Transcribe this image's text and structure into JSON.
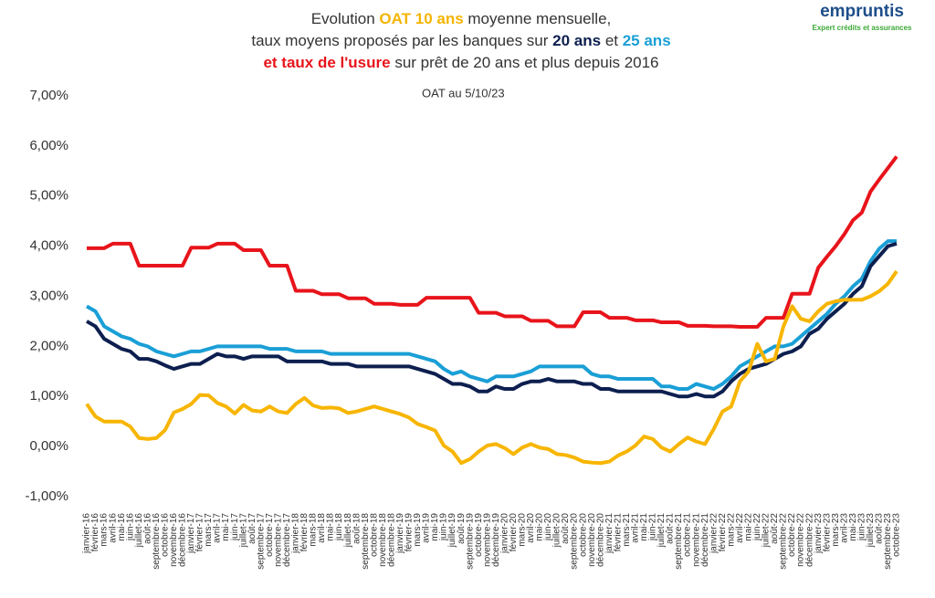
{
  "chart_data": {
    "type": "line",
    "title_lines": [
      [
        {
          "text": "Evolution "
        },
        {
          "text": "OAT 10 ans",
          "color": "#f5b400",
          "bold": true
        },
        {
          "text": " moyenne mensuelle,"
        }
      ],
      [
        {
          "text": "taux moyens proposés par les banques sur "
        },
        {
          "text": "20 ans",
          "color": "#0d1f4f",
          "bold": true
        },
        {
          "text": " et "
        },
        {
          "text": "25 ans",
          "color": "#1a9fd6",
          "bold": true
        }
      ],
      [
        {
          "text": "et taux de l'usure",
          "color": "#e8141b",
          "bold": true
        },
        {
          "text": " sur prêt de 20 ans et plus depuis 2016"
        }
      ]
    ],
    "annotation": "OAT au 5/10/23",
    "logo": {
      "name": "empruntis",
      "tagline": "Expert crédits et assurances"
    },
    "categories": [
      "janvier-16",
      "février-16",
      "mars-16",
      "avril-16",
      "mai-16",
      "juin-16",
      "juillet-16",
      "août-16",
      "septembre-16",
      "octobre-16",
      "novembre-16",
      "décembre-16",
      "janvier-17",
      "février-17",
      "mars-17",
      "avril-17",
      "mai-17",
      "juin-17",
      "juillet-17",
      "août-17",
      "septembre-17",
      "octobre-17",
      "novembre-17",
      "décembre-17",
      "janvier-18",
      "février-18",
      "mars-18",
      "avril-18",
      "mai-18",
      "juin-18",
      "juillet-18",
      "août-18",
      "septembre-18",
      "octobre-18",
      "novembre-18",
      "décembre-18",
      "janvier-19",
      "février-19",
      "mars-19",
      "avril-19",
      "mai-19",
      "juin-19",
      "juillet-19",
      "août-19",
      "septembre-19",
      "octobre-19",
      "novembre-19",
      "décembre-19",
      "janvier-20",
      "février-20",
      "mars-20",
      "avril-20",
      "mai-20",
      "juin-20",
      "juillet-20",
      "août-20",
      "septembre-20",
      "octobre-20",
      "novembre-20",
      "décembre-20",
      "janvier-21",
      "février-21",
      "mars-21",
      "avril-21",
      "mai-21",
      "juin-21",
      "juillet-21",
      "août-21",
      "septembre-21",
      "octobre-21",
      "novembre-21",
      "décembre-21",
      "janvier-22",
      "février-22",
      "mars-22",
      "avril-22",
      "mai-22",
      "juin-22",
      "juillet-22",
      "août-22",
      "septembre-22",
      "octobre-22",
      "novembre-22",
      "décembre-22",
      "janvier-23",
      "février-23",
      "mars-23",
      "avril-23",
      "mai-23",
      "juin-23",
      "juillet-23",
      "août-23",
      "septembre-23",
      "octobre-23"
    ],
    "series": [
      {
        "color": "#e8141b",
        "values": [
          3.96,
          3.96,
          3.96,
          4.05,
          4.05,
          4.05,
          3.61,
          3.61,
          3.61,
          3.61,
          3.61,
          3.61,
          3.97,
          3.97,
          3.97,
          4.05,
          4.05,
          4.05,
          3.92,
          3.92,
          3.92,
          3.61,
          3.61,
          3.61,
          3.11,
          3.11,
          3.11,
          3.04,
          3.04,
          3.04,
          2.96,
          2.96,
          2.96,
          2.85,
          2.85,
          2.85,
          2.83,
          2.83,
          2.83,
          2.97,
          2.97,
          2.97,
          2.97,
          2.97,
          2.97,
          2.67,
          2.67,
          2.67,
          2.6,
          2.6,
          2.6,
          2.51,
          2.51,
          2.51,
          2.4,
          2.4,
          2.4,
          2.68,
          2.68,
          2.68,
          2.57,
          2.57,
          2.57,
          2.52,
          2.52,
          2.52,
          2.48,
          2.48,
          2.48,
          2.41,
          2.41,
          2.41,
          2.4,
          2.4,
          2.4,
          2.39,
          2.39,
          2.39,
          2.57,
          2.57,
          2.57,
          3.05,
          3.05,
          3.05,
          3.57,
          3.79,
          4.0,
          4.24,
          4.52,
          4.67,
          5.09,
          5.33,
          5.56,
          5.79
        ]
      },
      {
        "color": "#1a9fd6",
        "values": [
          2.8,
          2.7,
          2.4,
          2.3,
          2.2,
          2.15,
          2.05,
          2.0,
          1.9,
          1.85,
          1.8,
          1.85,
          1.9,
          1.9,
          1.95,
          2.0,
          2.0,
          2.0,
          2.0,
          2.0,
          2.0,
          1.95,
          1.95,
          1.95,
          1.9,
          1.9,
          1.9,
          1.9,
          1.85,
          1.85,
          1.85,
          1.85,
          1.85,
          1.85,
          1.85,
          1.85,
          1.85,
          1.85,
          1.8,
          1.75,
          1.7,
          1.55,
          1.45,
          1.5,
          1.4,
          1.35,
          1.3,
          1.4,
          1.4,
          1.4,
          1.45,
          1.5,
          1.6,
          1.6,
          1.6,
          1.6,
          1.6,
          1.6,
          1.45,
          1.4,
          1.4,
          1.35,
          1.35,
          1.35,
          1.35,
          1.35,
          1.2,
          1.2,
          1.15,
          1.15,
          1.25,
          1.2,
          1.15,
          1.25,
          1.4,
          1.6,
          1.7,
          1.8,
          1.9,
          2.0,
          2.0,
          2.05,
          2.2,
          2.35,
          2.5,
          2.65,
          2.85,
          3.0,
          3.2,
          3.35,
          3.7,
          3.95,
          4.1,
          4.1
        ]
      },
      {
        "color": "#0d1f4f",
        "values": [
          2.5,
          2.4,
          2.15,
          2.05,
          1.95,
          1.9,
          1.75,
          1.75,
          1.7,
          1.62,
          1.55,
          1.6,
          1.65,
          1.65,
          1.75,
          1.85,
          1.8,
          1.8,
          1.75,
          1.8,
          1.8,
          1.8,
          1.8,
          1.7,
          1.7,
          1.7,
          1.7,
          1.7,
          1.65,
          1.65,
          1.65,
          1.6,
          1.6,
          1.6,
          1.6,
          1.6,
          1.6,
          1.6,
          1.55,
          1.5,
          1.45,
          1.35,
          1.25,
          1.25,
          1.2,
          1.1,
          1.1,
          1.2,
          1.15,
          1.15,
          1.25,
          1.3,
          1.3,
          1.35,
          1.3,
          1.3,
          1.3,
          1.25,
          1.25,
          1.15,
          1.15,
          1.1,
          1.1,
          1.1,
          1.1,
          1.1,
          1.1,
          1.05,
          1.0,
          1.0,
          1.05,
          1.0,
          1.0,
          1.1,
          1.3,
          1.45,
          1.55,
          1.6,
          1.65,
          1.75,
          1.85,
          1.9,
          2.0,
          2.25,
          2.35,
          2.55,
          2.7,
          2.85,
          3.05,
          3.2,
          3.6,
          3.8,
          4.0,
          4.05
        ]
      },
      {
        "color": "#f7b500",
        "values": [
          0.85,
          0.6,
          0.5,
          0.5,
          0.5,
          0.4,
          0.17,
          0.15,
          0.17,
          0.33,
          0.68,
          0.75,
          0.85,
          1.03,
          1.02,
          0.87,
          0.8,
          0.66,
          0.83,
          0.72,
          0.7,
          0.8,
          0.7,
          0.67,
          0.85,
          0.97,
          0.82,
          0.77,
          0.78,
          0.76,
          0.67,
          0.7,
          0.75,
          0.8,
          0.75,
          0.7,
          0.65,
          0.58,
          0.45,
          0.39,
          0.32,
          0.02,
          -0.1,
          -0.33,
          -0.25,
          -0.1,
          0.02,
          0.05,
          -0.03,
          -0.15,
          -0.02,
          0.05,
          -0.02,
          -0.05,
          -0.15,
          -0.17,
          -0.22,
          -0.3,
          -0.32,
          -0.33,
          -0.3,
          -0.18,
          -0.1,
          0.02,
          0.2,
          0.15,
          -0.02,
          -0.1,
          0.05,
          0.18,
          0.1,
          0.05,
          0.35,
          0.7,
          0.8,
          1.3,
          1.5,
          2.05,
          1.7,
          1.75,
          2.4,
          2.8,
          2.55,
          2.5,
          2.7,
          2.85,
          2.9,
          2.93,
          2.93,
          2.93,
          3.0,
          3.1,
          3.25,
          3.5
        ]
      }
    ],
    "ylim": [
      -1,
      7
    ],
    "yticks": [
      {
        "value": -1,
        "label": "-1,00%"
      },
      {
        "value": 0,
        "label": "0,00%"
      },
      {
        "value": 1,
        "label": "1,00%"
      },
      {
        "value": 2,
        "label": "2,00%"
      },
      {
        "value": 3,
        "label": "3,00%"
      },
      {
        "value": 4,
        "label": "4,00%"
      },
      {
        "value": 5,
        "label": "5,00%"
      },
      {
        "value": 6,
        "label": "6,00%"
      },
      {
        "value": 7,
        "label": "7,00%"
      }
    ],
    "grid": false
  }
}
